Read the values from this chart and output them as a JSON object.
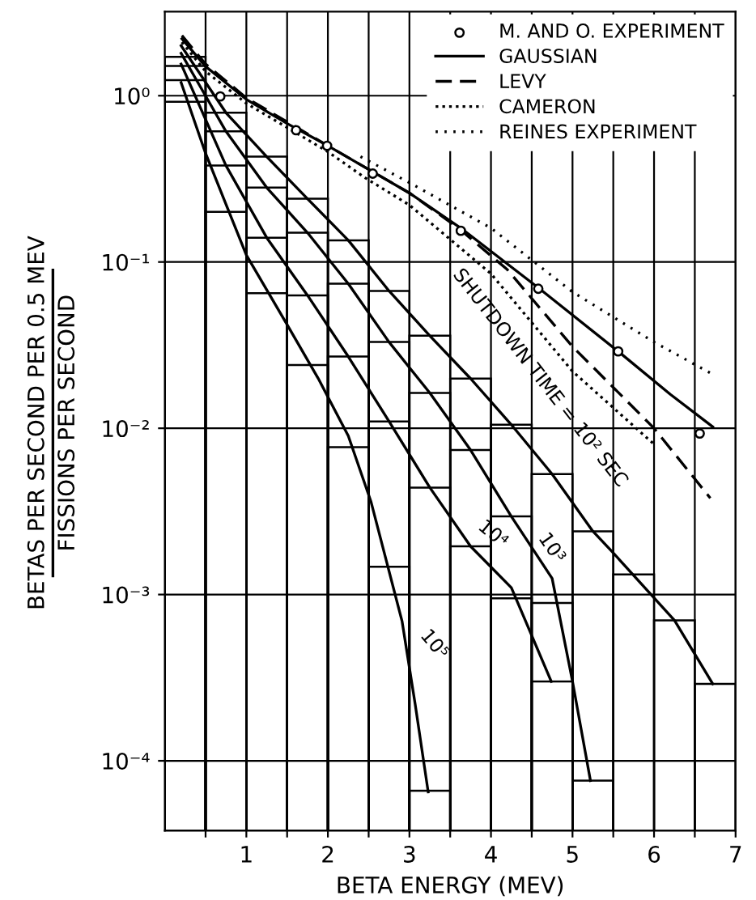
{
  "chart_data": {
    "type": "line",
    "xlabel": "BETA ENERGY (MEV)",
    "ylabel": "BETAS PER SECOND PER 0.5 MEV\nFISSIONS PER SECOND",
    "log": "y",
    "grid": true,
    "legend": "top right",
    "xlim": [
      0,
      7
    ],
    "ylim": [
      3.8e-05,
      3.2
    ],
    "xticks": [
      {
        "value": 0.5,
        "label": null
      },
      1,
      {
        "value": 1.5,
        "label": null
      },
      2,
      {
        "value": 2.5,
        "label": null
      },
      3,
      {
        "value": 3.5,
        "label": null
      },
      4,
      {
        "value": 4.5,
        "label": null
      },
      5,
      {
        "value": 5.5,
        "label": null
      },
      6,
      {
        "value": 6.5,
        "label": null
      },
      7
    ],
    "yticks": [
      {
        "value": 0.0001,
        "label": "10⁻⁴"
      },
      {
        "value": 0.001,
        "label": "10⁻³"
      },
      {
        "value": 0.01,
        "label": "10⁻²"
      },
      {
        "value": 0.1,
        "label": "10⁻¹"
      },
      {
        "value": 1,
        "label": "10⁰"
      }
    ],
    "bins": [
      0,
      0.5,
      1,
      1.5,
      2,
      2.5,
      3,
      3.5,
      4,
      4.5,
      5,
      5.5,
      6,
      6.5,
      7
    ],
    "series": [
      {
        "type": "histogram",
        "color": "#000000",
        "values": [
          1.71,
          0.79,
          0.43,
          0.24,
          0.135,
          0.067,
          0.036,
          0.0199,
          0.0105,
          0.0053,
          0.0024,
          0.00132,
          0.0007,
          0.00029
        ]
      },
      {
        "type": "histogram",
        "color": "#000000",
        "values": [
          1.51,
          0.61,
          0.28,
          0.15,
          0.074,
          0.033,
          0.0163,
          0.0074,
          0.00295,
          0.00089,
          7.6e-05,
          null,
          null,
          null
        ]
      },
      {
        "type": "histogram",
        "color": "#000000",
        "values": [
          1.24,
          0.38,
          0.14,
          0.063,
          0.027,
          0.011,
          0.0044,
          0.00195,
          0.00095,
          0.0003,
          null,
          null,
          null,
          null
        ]
      },
      {
        "type": "histogram",
        "color": "#000000",
        "values": [
          0.92,
          0.2,
          0.065,
          0.024,
          0.0077,
          0.00147,
          6.6e-05,
          null,
          null,
          null,
          null,
          null,
          null,
          null
        ]
      },
      {
        "type": "line",
        "name": "SHUTDOWN TIME = 10² SEC",
        "color": "#000000",
        "line_style": "solid",
        "x": [
          0.2,
          0.75,
          1.25,
          1.75,
          2.25,
          2.75,
          3.25,
          3.75,
          4.25,
          4.75,
          5.25,
          5.5,
          6.25,
          6.72
        ],
        "values": [
          2.0,
          0.79,
          0.43,
          0.24,
          0.135,
          0.067,
          0.036,
          0.0199,
          0.0105,
          0.0053,
          0.0024,
          0.00178,
          0.0007,
          0.00029
        ]
      },
      {
        "type": "line",
        "name": "10³",
        "color": "#000000",
        "line_style": "solid",
        "x": [
          0.2,
          0.75,
          1.25,
          1.75,
          2.25,
          2.75,
          3.25,
          3.75,
          4.25,
          4.75,
          5.0,
          5.22
        ],
        "values": [
          1.8,
          0.61,
          0.28,
          0.15,
          0.074,
          0.033,
          0.0163,
          0.0074,
          0.00295,
          0.00125,
          0.0003,
          7.6e-05
        ]
      },
      {
        "type": "line",
        "name": "10⁴",
        "color": "#000000",
        "line_style": "solid",
        "x": [
          0.2,
          0.75,
          1.25,
          1.75,
          2.25,
          2.75,
          3.25,
          3.75,
          4.25,
          4.74
        ],
        "values": [
          1.55,
          0.38,
          0.14,
          0.063,
          0.027,
          0.011,
          0.0044,
          0.00195,
          0.0011,
          0.0003
        ]
      },
      {
        "type": "line",
        "name": "10⁵",
        "color": "#000000",
        "line_style": "solid",
        "x": [
          0.2,
          0.5,
          1.0,
          1.5,
          1.88,
          2.25,
          2.53,
          2.91,
          3.07,
          3.23
        ],
        "values": [
          1.2,
          0.45,
          0.11,
          0.042,
          0.02,
          0.009,
          0.0036,
          0.00069,
          0.00022,
          6.5e-05
        ]
      },
      {
        "type": "scatter",
        "name": "M. AND O. EXPERIMENT",
        "color": "#000000",
        "marker": "circle",
        "x": [
          0.68,
          1.61,
          1.99,
          2.55,
          3.63,
          4.58,
          5.56,
          6.56
        ],
        "values": [
          0.99,
          0.62,
          0.5,
          0.34,
          0.154,
          0.069,
          0.029,
          0.0093
        ]
      },
      {
        "type": "line",
        "name": "GAUSSIAN",
        "color": "#000000",
        "line_style": "solid",
        "x": [
          0.21,
          0.5,
          1,
          1.5,
          2,
          2.5,
          3,
          3.63,
          4.58,
          5.56,
          6.2,
          6.72
        ],
        "values": [
          2.2,
          1.5,
          0.95,
          0.68,
          0.5,
          0.36,
          0.26,
          0.16,
          0.07,
          0.029,
          0.016,
          0.0102
        ]
      },
      {
        "type": "line",
        "name": "LEVY",
        "color": "#000000",
        "line_style": "dashed",
        "x": [
          0.21,
          0.5,
          1,
          2,
          3,
          3.6,
          4.2,
          5,
          6,
          6.69
        ],
        "values": [
          2.3,
          1.55,
          0.97,
          0.5,
          0.26,
          0.16,
          0.09,
          0.031,
          0.01,
          0.0038
        ]
      },
      {
        "type": "line",
        "name": "CAMERON",
        "color": "#000000",
        "line_style": "dotted",
        "x": [
          0.21,
          0.5,
          1,
          2,
          2.46,
          3,
          4,
          5,
          5.99
        ],
        "values": [
          2.1,
          1.4,
          0.9,
          0.46,
          0.32,
          0.22,
          0.085,
          0.022,
          0.0081
        ]
      },
      {
        "type": "line",
        "name": "REINES EXPERIMENT",
        "color": "#000000",
        "line_style": "dotted",
        "x": [
          2.4,
          3,
          4,
          5,
          6,
          6.75
        ],
        "values": [
          0.43,
          0.3,
          0.16,
          0.066,
          0.033,
          0.0207
        ]
      }
    ]
  }
}
